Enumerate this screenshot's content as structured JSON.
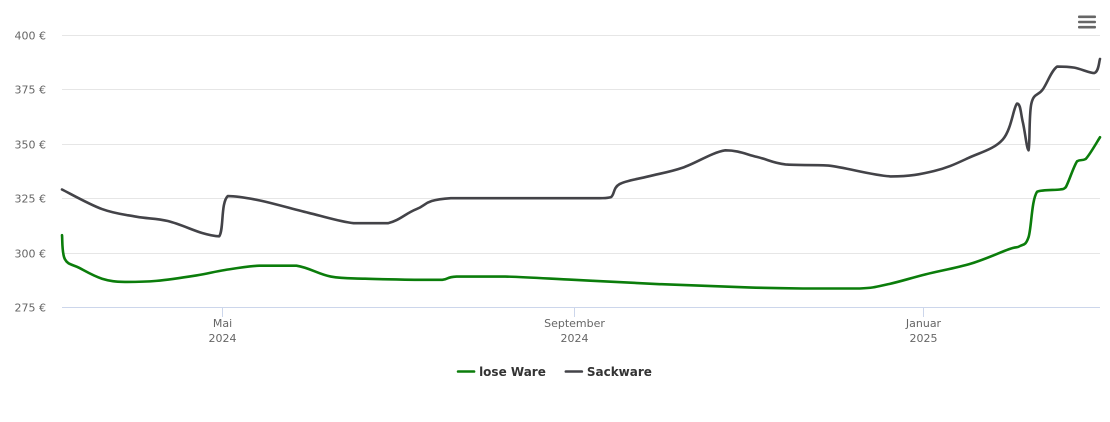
{
  "chart_data": {
    "type": "line",
    "y_tick_labels": [
      "275 €",
      "300 €",
      "325 €",
      "350 €",
      "375 €",
      "400 €"
    ],
    "y_ticks": [
      275,
      300,
      325,
      350,
      375,
      400
    ],
    "ylim": [
      275,
      400
    ],
    "xlim": [
      "2024-03-06",
      "2025-03-04"
    ],
    "x_ticks": [
      {
        "date": "2024-05-01",
        "label": "Mai",
        "year": "2024"
      },
      {
        "date": "2024-09-01",
        "label": "September",
        "year": "2024"
      },
      {
        "date": "2025-01-01",
        "label": "Januar",
        "year": "2025"
      }
    ],
    "grid": true,
    "legend_position": "bottom-center",
    "series": [
      {
        "name": "lose Ware",
        "color": "#0b7d0b",
        "points": [
          [
            "2024-03-06",
            308
          ],
          [
            "2024-03-07",
            297
          ],
          [
            "2024-03-12",
            293
          ],
          [
            "2024-03-20",
            288
          ],
          [
            "2024-03-28",
            286.5
          ],
          [
            "2024-04-08",
            287
          ],
          [
            "2024-04-22",
            289.5
          ],
          [
            "2024-05-02",
            292
          ],
          [
            "2024-05-14",
            294
          ],
          [
            "2024-05-27",
            294
          ],
          [
            "2024-06-08",
            289
          ],
          [
            "2024-06-20",
            288
          ],
          [
            "2024-07-08",
            287.5
          ],
          [
            "2024-07-17",
            287.5
          ],
          [
            "2024-07-22",
            289
          ],
          [
            "2024-08-08",
            289
          ],
          [
            "2024-09-01",
            287.5
          ],
          [
            "2024-10-01",
            285.5
          ],
          [
            "2024-11-01",
            284
          ],
          [
            "2024-11-20",
            283.5
          ],
          [
            "2024-12-10",
            283.5
          ],
          [
            "2024-12-20",
            285.5
          ],
          [
            "2025-01-02",
            290
          ],
          [
            "2025-01-18",
            295
          ],
          [
            "2025-01-31",
            301.5
          ],
          [
            "2025-02-04",
            303
          ],
          [
            "2025-02-07",
            307
          ],
          [
            "2025-02-10",
            328
          ],
          [
            "2025-02-18",
            329
          ],
          [
            "2025-02-20",
            330
          ],
          [
            "2025-02-24",
            342
          ],
          [
            "2025-02-27",
            343
          ],
          [
            "2025-03-04",
            353
          ]
        ]
      },
      {
        "name": "Sackware",
        "color": "#434348",
        "points": [
          [
            "2024-03-06",
            329
          ],
          [
            "2024-03-20",
            320
          ],
          [
            "2024-04-01",
            316.5
          ],
          [
            "2024-04-12",
            314.5
          ],
          [
            "2024-04-24",
            309
          ],
          [
            "2024-04-30",
            307.5
          ],
          [
            "2024-05-03",
            326
          ],
          [
            "2024-05-14",
            324
          ],
          [
            "2024-06-01",
            318
          ],
          [
            "2024-06-16",
            313.5
          ],
          [
            "2024-06-28",
            313.5
          ],
          [
            "2024-07-08",
            320
          ],
          [
            "2024-07-20",
            325
          ],
          [
            "2024-08-31",
            325
          ],
          [
            "2024-09-10",
            325
          ],
          [
            "2024-09-14",
            325.5
          ],
          [
            "2024-09-17",
            331.5
          ],
          [
            "2024-09-27",
            335
          ],
          [
            "2024-10-09",
            339
          ],
          [
            "2024-10-24",
            347
          ],
          [
            "2024-11-04",
            344
          ],
          [
            "2024-11-14",
            340.5
          ],
          [
            "2024-11-29",
            340
          ],
          [
            "2024-12-21",
            335
          ],
          [
            "2025-01-05",
            337.5
          ],
          [
            "2025-01-17",
            343.5
          ],
          [
            "2025-01-29",
            352
          ],
          [
            "2025-02-03",
            368.5
          ],
          [
            "2025-02-05",
            360
          ],
          [
            "2025-02-07",
            347
          ],
          [
            "2025-02-08",
            368.5
          ],
          [
            "2025-02-12",
            375
          ],
          [
            "2025-02-17",
            385.5
          ],
          [
            "2025-02-23",
            385
          ],
          [
            "2025-03-02",
            382.5
          ],
          [
            "2025-03-04",
            389
          ]
        ]
      }
    ]
  },
  "menu": {
    "icon": "hamburger-menu-icon"
  }
}
